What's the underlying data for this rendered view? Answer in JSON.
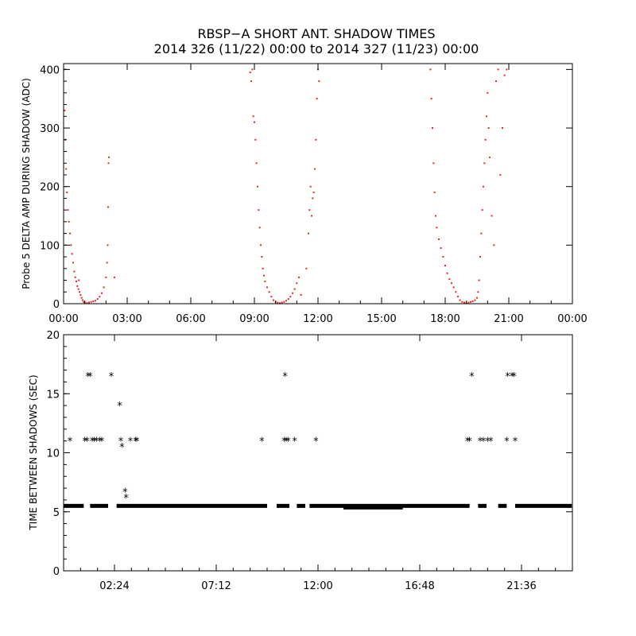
{
  "title_line1": "RBSP−A SHORT ANT. SHADOW TIMES",
  "title_line2": "2014 326 (11/22) 00:00 to 2014 327 (11/23) 00:00",
  "colors": {
    "amp_points": "#e8281c",
    "shadow_points": "#000000",
    "axes": "#000000"
  },
  "chart_data": [
    {
      "type": "scatter",
      "ylabel": "Probe 5 DELTA AMP DURING SHADOW (ADC)",
      "xlabel": "",
      "xlim_hours": [
        0,
        24
      ],
      "ylim": [
        0,
        410
      ],
      "xticks_hours": [
        0,
        3,
        6,
        9,
        12,
        15,
        18,
        21,
        24
      ],
      "xtick_labels": [
        "00:00",
        "03:00",
        "06:00",
        "09:00",
        "12:00",
        "15:00",
        "18:00",
        "21:00",
        "00:00"
      ],
      "yticks": [
        0,
        100,
        200,
        300,
        400
      ],
      "grid": false,
      "series": [
        {
          "color": "#e8281c",
          "points": [
            [
              0.02,
              400
            ],
            [
              0.05,
              330
            ],
            [
              0.08,
              280
            ],
            [
              0.12,
              230
            ],
            [
              0.16,
              190
            ],
            [
              0.2,
              160
            ],
            [
              0.25,
              140
            ],
            [
              0.3,
              120
            ],
            [
              0.35,
              100
            ],
            [
              0.4,
              85
            ],
            [
              0.45,
              70
            ],
            [
              0.5,
              55
            ],
            [
              0.55,
              45
            ],
            [
              0.6,
              38
            ],
            [
              0.65,
              30
            ],
            [
              0.7,
              25
            ],
            [
              0.72,
              40
            ],
            [
              0.75,
              20
            ],
            [
              0.8,
              15
            ],
            [
              0.85,
              10
            ],
            [
              0.9,
              6
            ],
            [
              0.95,
              3
            ],
            [
              1.0,
              2
            ],
            [
              1.1,
              1
            ],
            [
              1.2,
              2
            ],
            [
              1.3,
              3
            ],
            [
              1.4,
              4
            ],
            [
              1.5,
              5
            ],
            [
              1.6,
              8
            ],
            [
              1.7,
              12
            ],
            [
              1.8,
              18
            ],
            [
              1.9,
              28
            ],
            [
              2.0,
              45
            ],
            [
              2.05,
              70
            ],
            [
              2.08,
              100
            ],
            [
              2.1,
              165
            ],
            [
              2.12,
              240
            ],
            [
              2.14,
              250
            ],
            [
              2.4,
              45
            ],
            [
              8.8,
              395
            ],
            [
              8.85,
              380
            ],
            [
              8.9,
              400
            ],
            [
              8.95,
              320
            ],
            [
              9.0,
              310
            ],
            [
              9.05,
              280
            ],
            [
              9.1,
              240
            ],
            [
              9.15,
              200
            ],
            [
              9.2,
              160
            ],
            [
              9.25,
              130
            ],
            [
              9.3,
              100
            ],
            [
              9.35,
              80
            ],
            [
              9.4,
              60
            ],
            [
              9.45,
              48
            ],
            [
              9.5,
              38
            ],
            [
              9.6,
              28
            ],
            [
              9.7,
              20
            ],
            [
              9.8,
              12
            ],
            [
              9.9,
              6
            ],
            [
              10.0,
              3
            ],
            [
              10.1,
              2
            ],
            [
              10.2,
              1
            ],
            [
              10.3,
              2
            ],
            [
              10.4,
              3
            ],
            [
              10.5,
              5
            ],
            [
              10.6,
              8
            ],
            [
              10.7,
              12
            ],
            [
              10.8,
              18
            ],
            [
              10.9,
              25
            ],
            [
              11.0,
              35
            ],
            [
              11.1,
              45
            ],
            [
              11.2,
              15
            ],
            [
              11.45,
              60
            ],
            [
              11.55,
              120
            ],
            [
              11.6,
              160
            ],
            [
              11.65,
              200
            ],
            [
              11.7,
              150
            ],
            [
              11.75,
              180
            ],
            [
              11.8,
              190
            ],
            [
              11.85,
              230
            ],
            [
              11.9,
              280
            ],
            [
              11.95,
              350
            ],
            [
              12.0,
              400
            ],
            [
              12.05,
              380
            ],
            [
              17.3,
              400
            ],
            [
              17.35,
              350
            ],
            [
              17.4,
              300
            ],
            [
              17.45,
              240
            ],
            [
              17.5,
              190
            ],
            [
              17.55,
              150
            ],
            [
              17.6,
              130
            ],
            [
              17.7,
              110
            ],
            [
              17.8,
              95
            ],
            [
              17.9,
              80
            ],
            [
              18.0,
              65
            ],
            [
              18.1,
              52
            ],
            [
              18.2,
              42
            ],
            [
              18.3,
              35
            ],
            [
              18.4,
              28
            ],
            [
              18.5,
              20
            ],
            [
              18.6,
              12
            ],
            [
              18.7,
              6
            ],
            [
              18.8,
              3
            ],
            [
              18.9,
              2
            ],
            [
              19.0,
              1
            ],
            [
              19.1,
              2
            ],
            [
              19.2,
              3
            ],
            [
              19.3,
              4
            ],
            [
              19.4,
              6
            ],
            [
              19.5,
              10
            ],
            [
              19.55,
              20
            ],
            [
              19.6,
              40
            ],
            [
              19.65,
              80
            ],
            [
              19.7,
              120
            ],
            [
              19.75,
              160
            ],
            [
              19.8,
              200
            ],
            [
              19.85,
              240
            ],
            [
              19.9,
              280
            ],
            [
              19.95,
              320
            ],
            [
              20.0,
              360
            ],
            [
              20.05,
              300
            ],
            [
              20.1,
              250
            ],
            [
              20.2,
              150
            ],
            [
              20.3,
              100
            ],
            [
              20.4,
              380
            ],
            [
              20.5,
              400
            ],
            [
              20.6,
              220
            ],
            [
              20.7,
              300
            ],
            [
              20.8,
              390
            ],
            [
              20.9,
              400
            ]
          ]
        }
      ]
    },
    {
      "type": "scatter",
      "ylabel": "TIME BETWEEN SHADOWS (SEC)",
      "xlabel": "",
      "xlim_hours": [
        0,
        24
      ],
      "ylim": [
        0,
        20
      ],
      "xticks_hours": [
        2.4,
        7.2,
        12.0,
        16.8,
        21.6
      ],
      "xtick_labels": [
        "02:24",
        "07:12",
        "12:00",
        "16:48",
        "21:36"
      ],
      "yticks": [
        0,
        5,
        10,
        15,
        20
      ],
      "grid": false,
      "series": [
        {
          "name": "baseline",
          "color": "#000000",
          "y": 5.5,
          "segments_hours": [
            [
              0.0,
              0.95
            ],
            [
              1.25,
              2.1
            ],
            [
              2.5,
              9.6
            ],
            [
              10.05,
              10.65
            ],
            [
              11.0,
              11.4
            ],
            [
              11.6,
              19.15
            ],
            [
              19.55,
              19.95
            ],
            [
              20.5,
              20.9
            ],
            [
              21.3,
              23.97
            ]
          ],
          "dip_y": 5.4,
          "dip_segment_hours": [
            13.2,
            16.0
          ]
        },
        {
          "name": "outliers",
          "color": "#000000",
          "points": [
            [
              0.3,
              11.0
            ],
            [
              1.0,
              11.0
            ],
            [
              1.1,
              11.0
            ],
            [
              1.15,
              16.5
            ],
            [
              1.25,
              16.5
            ],
            [
              1.35,
              11.0
            ],
            [
              1.45,
              11.0
            ],
            [
              1.55,
              11.0
            ],
            [
              1.7,
              11.0
            ],
            [
              1.8,
              11.0
            ],
            [
              2.25,
              16.5
            ],
            [
              2.65,
              14.0
            ],
            [
              2.7,
              11.0
            ],
            [
              2.75,
              10.5
            ],
            [
              2.9,
              6.7
            ],
            [
              2.95,
              6.2
            ],
            [
              3.15,
              11.0
            ],
            [
              3.4,
              11.0
            ],
            [
              3.45,
              11.0
            ],
            [
              9.35,
              11.0
            ],
            [
              10.4,
              11.0
            ],
            [
              10.45,
              16.5
            ],
            [
              10.5,
              11.0
            ],
            [
              10.6,
              11.0
            ],
            [
              10.9,
              11.0
            ],
            [
              11.9,
              11.0
            ],
            [
              19.05,
              11.0
            ],
            [
              19.15,
              11.0
            ],
            [
              19.25,
              16.5
            ],
            [
              19.65,
              11.0
            ],
            [
              19.8,
              11.0
            ],
            [
              20.0,
              11.0
            ],
            [
              20.15,
              11.0
            ],
            [
              20.9,
              11.0
            ],
            [
              20.95,
              16.5
            ],
            [
              21.15,
              16.5
            ],
            [
              21.25,
              16.5
            ],
            [
              21.3,
              11.0
            ]
          ]
        }
      ]
    }
  ]
}
